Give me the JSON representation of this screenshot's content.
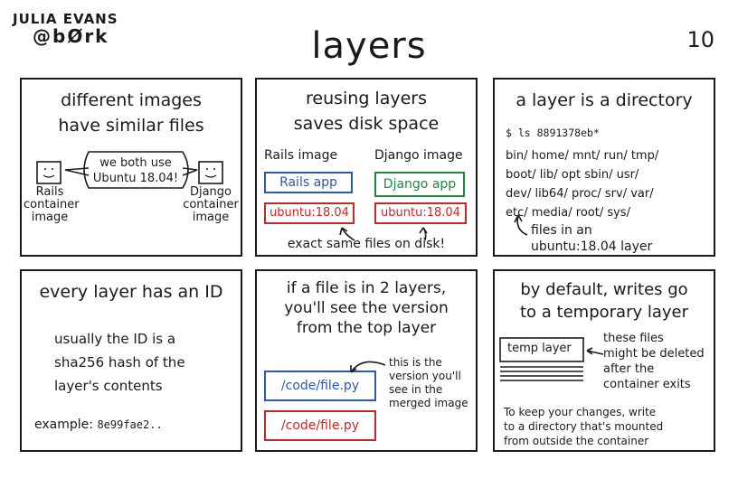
{
  "header": {
    "author_name": "JULIA EVANS",
    "author_handle": "@bØrk",
    "title": "layers",
    "page_number": "10"
  },
  "panels": {
    "p1": {
      "title_line1": "different images",
      "title_line2": "have similar files",
      "bubble_line1": "we both use",
      "bubble_line2": "Ubuntu 18.04!",
      "left_label": [
        "Rails",
        "container",
        "image"
      ],
      "right_label": [
        "Django",
        "container",
        "image"
      ]
    },
    "p2": {
      "title_line1": "reusing layers",
      "title_line2": "saves disk space",
      "rails_heading": "Rails image",
      "django_heading": "Django image",
      "rails_app": "Rails app",
      "django_app": "Django app",
      "ubuntu_left": "ubuntu:18.04",
      "ubuntu_right": "ubuntu:18.04",
      "caption": "exact same files on disk!"
    },
    "p3": {
      "title": "a layer is a directory",
      "command": "$ ls 8891378eb*",
      "lines": [
        "bin/ home/ mnt/ run/ tmp/",
        "boot/ lib/ opt sbin/ usr/",
        "dev/ lib64/ proc/ srv/ var/",
        "etc/ media/ root/ sys/"
      ],
      "note_line1": "files in an",
      "note_line2": "ubuntu:18.04 layer"
    },
    "p4": {
      "title": "every layer has an ID",
      "body": [
        "usually the ID is a",
        "sha256 hash of the",
        "layer's contents"
      ],
      "example_label": "example:",
      "example_value": "8e99fae2.."
    },
    "p5": {
      "title": [
        "if a file is in 2 layers,",
        "you'll see the version",
        "from the top layer"
      ],
      "top_file": "/code/file.py",
      "bottom_file": "/code/file.py",
      "note": [
        "this is the",
        "version you'll",
        "see in the",
        "merged image"
      ]
    },
    "p6": {
      "title": [
        "by default, writes go",
        "to a temporary layer"
      ],
      "temp_label": "temp layer",
      "note": [
        "these files",
        "might be deleted",
        "after the",
        "container exits"
      ],
      "footer": [
        "To keep your changes, write",
        "to a directory that's mounted",
        "from outside the container"
      ]
    }
  }
}
